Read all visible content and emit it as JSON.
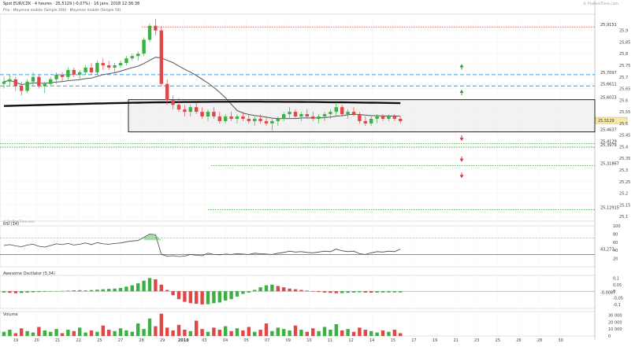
{
  "header": {
    "title": "Spot EUR/CZK · 4 heures · 25,5129 (-0,07%) · 16 janv. 2018 12:36:38",
    "legend": "Prix : Moyenne mobile (Simple 200) · Moyenne mobile (Simple 50)",
    "watermark": "© ProRealTime.com"
  },
  "chart_data": [
    {
      "type": "candlestick",
      "name": "price",
      "y_ticks": [
        "25,9",
        "25,85",
        "25,8",
        "25,75",
        "25,7",
        "25,65",
        "25,6",
        "25,55",
        "25,5",
        "25,45",
        "25,4",
        "25,35",
        "25,3",
        "25,25",
        "25,2",
        "25,15",
        "25,1"
      ],
      "ylim": [
        25.08,
        25.97
      ],
      "last_price": "25,5129",
      "box_top_label": "25,6023",
      "levels": [
        {
          "value": 25.9151,
          "label": "25,9151",
          "style": "red-dotted"
        },
        {
          "value": 25.7097,
          "label": "25,7097",
          "style": "blue-dashed"
        },
        {
          "value": 25.6611,
          "label": "25,6611",
          "style": "blue-dashed"
        },
        {
          "value": 25.4637,
          "label": "25,4637",
          "style": "black"
        },
        {
          "value": 25.4129,
          "label": "25,4129",
          "style": "green-dotted"
        },
        {
          "value": 25.3979,
          "label": "25,3979",
          "style": "green-dotted"
        },
        {
          "value": 25.3187,
          "label": "25,31867",
          "style": "green-dotted"
        },
        {
          "value": 25.1291,
          "label": "25,12915",
          "style": "green-dotted"
        }
      ],
      "candles_ohlc": [
        [
          25.67,
          25.7,
          25.65,
          25.68
        ],
        [
          25.68,
          25.71,
          25.66,
          25.69
        ],
        [
          25.69,
          25.7,
          25.64,
          25.66
        ],
        [
          25.66,
          25.68,
          25.62,
          25.64
        ],
        [
          25.64,
          25.69,
          25.63,
          25.68
        ],
        [
          25.68,
          25.72,
          25.66,
          25.7
        ],
        [
          25.7,
          25.71,
          25.65,
          25.66
        ],
        [
          25.66,
          25.68,
          25.63,
          25.67
        ],
        [
          25.67,
          25.7,
          25.66,
          25.69
        ],
        [
          25.69,
          25.72,
          25.67,
          25.71
        ],
        [
          25.71,
          25.72,
          25.68,
          25.7
        ],
        [
          25.7,
          25.74,
          25.69,
          25.73
        ],
        [
          25.73,
          25.74,
          25.7,
          25.71
        ],
        [
          25.71,
          25.73,
          25.69,
          25.72
        ],
        [
          25.72,
          25.75,
          25.71,
          25.74
        ],
        [
          25.74,
          25.76,
          25.71,
          25.72
        ],
        [
          25.72,
          25.77,
          25.71,
          25.76
        ],
        [
          25.76,
          25.78,
          25.73,
          25.75
        ],
        [
          25.75,
          25.77,
          25.73,
          25.74
        ],
        [
          25.74,
          25.76,
          25.72,
          25.75
        ],
        [
          25.75,
          25.77,
          25.74,
          25.76
        ],
        [
          25.76,
          25.79,
          25.75,
          25.78
        ],
        [
          25.78,
          25.8,
          25.77,
          25.79
        ],
        [
          25.79,
          25.81,
          25.77,
          25.8
        ],
        [
          25.8,
          25.87,
          25.79,
          25.86
        ],
        [
          25.86,
          25.93,
          25.85,
          25.92
        ],
        [
          25.92,
          25.95,
          25.88,
          25.9
        ],
        [
          25.9,
          25.92,
          25.66,
          25.67
        ],
        [
          25.67,
          25.69,
          25.58,
          25.6
        ],
        [
          25.6,
          25.62,
          25.56,
          25.58
        ],
        [
          25.58,
          25.61,
          25.55,
          25.56
        ],
        [
          25.56,
          25.58,
          25.53,
          25.55
        ],
        [
          25.55,
          25.58,
          25.53,
          25.57
        ],
        [
          25.57,
          25.59,
          25.54,
          25.55
        ],
        [
          25.55,
          25.57,
          25.52,
          25.53
        ],
        [
          25.53,
          25.56,
          25.51,
          25.55
        ],
        [
          25.55,
          25.57,
          25.52,
          25.53
        ],
        [
          25.53,
          25.55,
          25.5,
          25.51
        ],
        [
          25.51,
          25.54,
          25.5,
          25.53
        ],
        [
          25.53,
          25.55,
          25.51,
          25.52
        ],
        [
          25.52,
          25.54,
          25.5,
          25.53
        ],
        [
          25.53,
          25.55,
          25.51,
          25.52
        ],
        [
          25.52,
          25.54,
          25.5,
          25.51
        ],
        [
          25.51,
          25.53,
          25.49,
          25.52
        ],
        [
          25.52,
          25.54,
          25.5,
          25.51
        ],
        [
          25.51,
          25.53,
          25.49,
          25.5
        ],
        [
          25.5,
          25.52,
          25.47,
          25.51
        ],
        [
          25.51,
          25.53,
          25.49,
          25.52
        ],
        [
          25.52,
          25.55,
          25.51,
          25.54
        ],
        [
          25.54,
          25.57,
          25.52,
          25.55
        ],
        [
          25.55,
          25.56,
          25.52,
          25.53
        ],
        [
          25.53,
          25.55,
          25.51,
          25.54
        ],
        [
          25.54,
          25.56,
          25.52,
          25.53
        ],
        [
          25.53,
          25.55,
          25.51,
          25.52
        ],
        [
          25.52,
          25.54,
          25.5,
          25.53
        ],
        [
          25.53,
          25.55,
          25.51,
          25.54
        ],
        [
          25.54,
          25.56,
          25.52,
          25.55
        ],
        [
          25.55,
          25.59,
          25.53,
          25.57
        ],
        [
          25.57,
          25.58,
          25.53,
          25.54
        ],
        [
          25.54,
          25.56,
          25.52,
          25.55
        ],
        [
          25.55,
          25.57,
          25.53,
          25.54
        ],
        [
          25.54,
          25.55,
          25.5,
          25.51
        ],
        [
          25.51,
          25.53,
          25.49,
          25.5
        ],
        [
          25.5,
          25.53,
          25.49,
          25.52
        ],
        [
          25.52,
          25.54,
          25.5,
          25.53
        ],
        [
          25.53,
          25.54,
          25.51,
          25.52
        ],
        [
          25.52,
          25.54,
          25.51,
          25.53
        ],
        [
          25.53,
          25.54,
          25.51,
          25.52
        ],
        [
          25.52,
          25.53,
          25.5,
          25.51
        ]
      ],
      "ma50_label": "Moyenne mobile (Simple 50)",
      "ma200_label": "Moyenne mobile (Simple 200)"
    },
    {
      "type": "line",
      "name": "RSI",
      "label": "RSI (14)",
      "y_ticks": [
        "100",
        "80",
        "60",
        "40",
        "20"
      ],
      "ylim": [
        0,
        100
      ],
      "last_value": "43,277",
      "values": [
        52,
        54,
        51,
        49,
        53,
        55,
        50,
        48,
        52,
        56,
        54,
        57,
        53,
        55,
        58,
        54,
        59,
        56,
        55,
        57,
        58,
        61,
        63,
        64,
        72,
        80,
        78,
        30,
        26,
        27,
        25,
        26,
        30,
        28,
        27,
        33,
        30,
        29,
        31,
        30,
        32,
        31,
        30,
        33,
        32,
        31,
        30,
        33,
        35,
        38,
        36,
        37,
        35,
        34,
        36,
        38,
        37,
        43,
        39,
        37,
        38,
        32,
        30,
        34,
        37,
        36,
        38,
        37,
        43
      ]
    },
    {
      "type": "bar",
      "name": "Awesome Oscillator",
      "label": "Awesome Oscillator (5,34)",
      "y_ticks": [
        "0,1",
        "0,05",
        "0",
        "-0,05",
        "-0,1"
      ],
      "ylim": [
        -0.13,
        0.12
      ],
      "last_value": "-0,0087",
      "values": [
        -0.01,
        -0.012,
        -0.015,
        -0.013,
        -0.01,
        -0.008,
        -0.006,
        -0.004,
        -0.002,
        0.001,
        0.003,
        0.005,
        0.007,
        0.008,
        0.006,
        0.009,
        0.012,
        0.015,
        0.018,
        0.02,
        0.025,
        0.035,
        0.045,
        0.06,
        0.08,
        0.1,
        0.09,
        0.05,
        0.01,
        -0.03,
        -0.06,
        -0.08,
        -0.09,
        -0.095,
        -0.1,
        -0.098,
        -0.09,
        -0.085,
        -0.07,
        -0.06,
        -0.04,
        -0.02,
        -0.01,
        0.01,
        0.03,
        0.045,
        0.05,
        0.04,
        0.03,
        0.02,
        0.015,
        0.01,
        0.005,
        -0.003,
        -0.006,
        -0.01,
        -0.012,
        -0.015,
        -0.014,
        -0.012,
        -0.01,
        -0.008,
        -0.01,
        -0.011,
        -0.01,
        -0.009,
        -0.009,
        -0.0087,
        -0.0087
      ]
    },
    {
      "type": "bar",
      "name": "Volume",
      "label": "Volume",
      "y_ticks": [
        "30 000",
        "20 000",
        "10 000",
        "0"
      ],
      "ylim": [
        0,
        35000
      ],
      "values": [
        6000,
        9000,
        4000,
        11000,
        7000,
        5000,
        13000,
        8000,
        6000,
        10000,
        4000,
        9000,
        7000,
        12000,
        5000,
        8000,
        6000,
        15000,
        9000,
        7000,
        11000,
        8000,
        6000,
        18000,
        10000,
        25000,
        14000,
        32000,
        12000,
        8000,
        16000,
        9000,
        7000,
        22000,
        10000,
        6000,
        12000,
        9000,
        14000,
        7000,
        11000,
        8000,
        13000,
        6000,
        9000,
        18000,
        7000,
        12000,
        10000,
        8000,
        15000,
        9000,
        6000,
        11000,
        7000,
        13000,
        9000,
        17000,
        8000,
        10000,
        6000,
        12000,
        9000,
        7000,
        5000,
        8000,
        6000,
        9000,
        4000
      ]
    },
    {
      "type": "axis",
      "name": "x-axis",
      "x_ticks": [
        "19",
        "20",
        "21",
        "22",
        "25",
        "27",
        "28",
        "29",
        "2018",
        "03",
        "04",
        "05",
        "07",
        "09",
        "10",
        "11",
        "12",
        "14",
        "15",
        "17",
        "19",
        "21",
        "23",
        "25",
        "26",
        "28",
        "30"
      ]
    }
  ]
}
